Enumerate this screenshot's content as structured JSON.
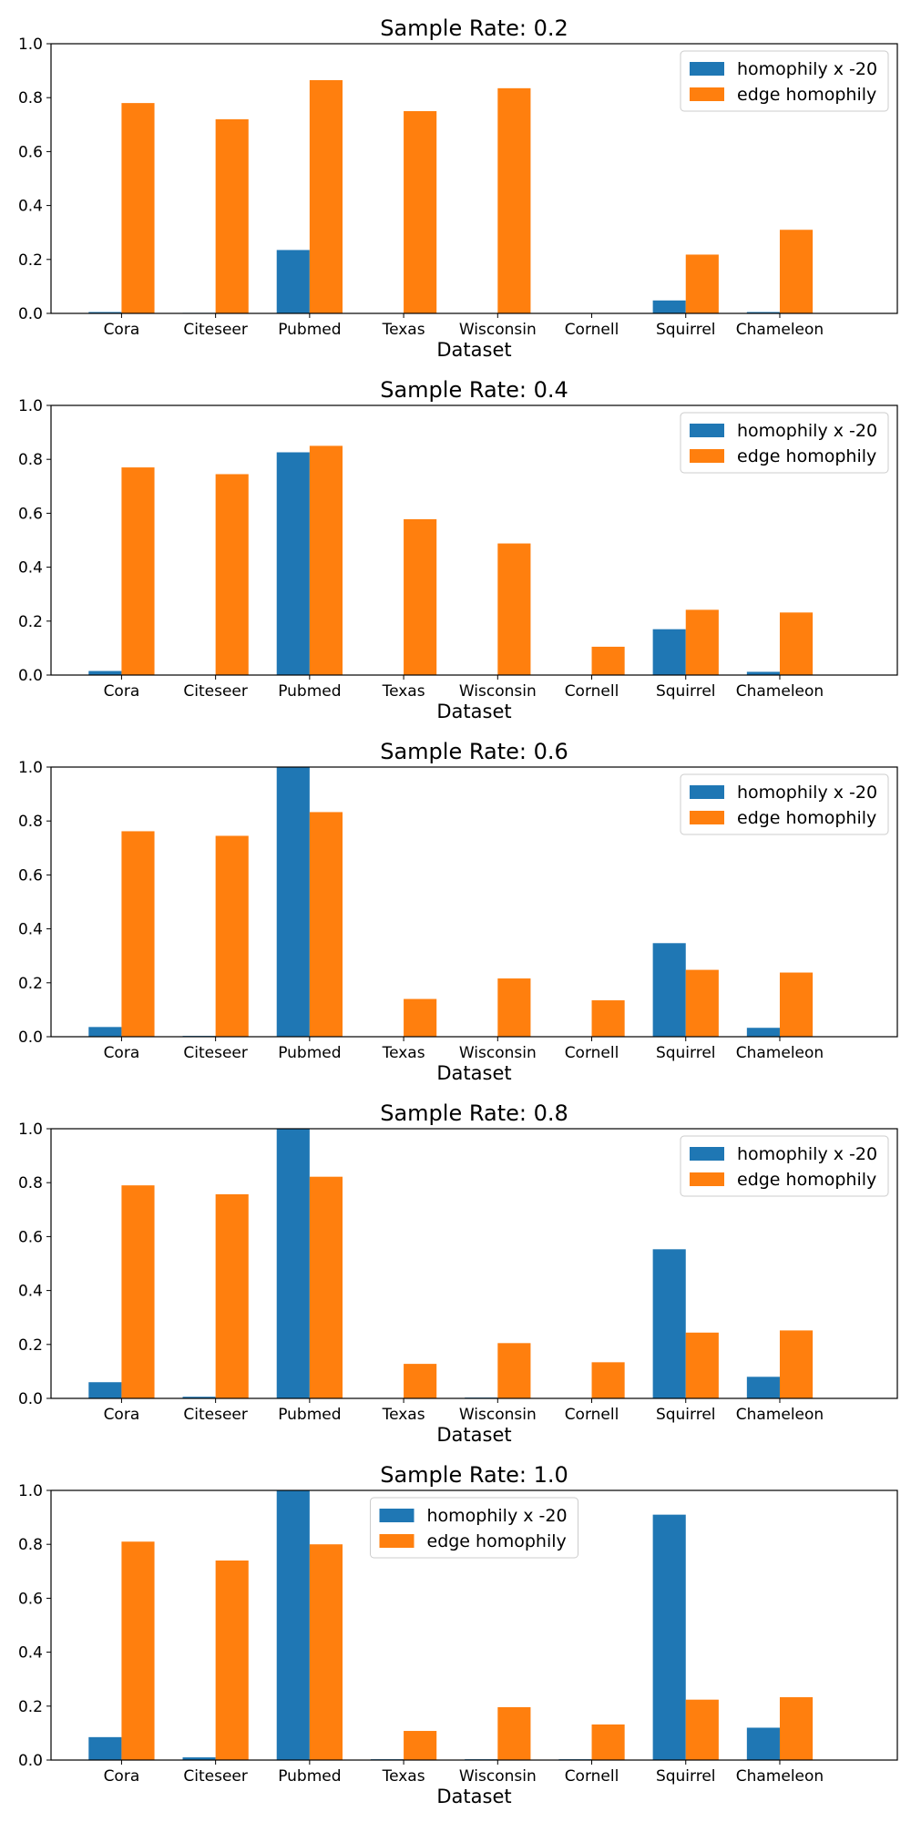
{
  "colors": {
    "series_1": "#1f77b4",
    "series_2": "#ff7f0e"
  },
  "chart_data": [
    {
      "type": "bar",
      "title": "Sample Rate: 0.2",
      "xlabel": "Dataset",
      "ylabel": "",
      "ylim": [
        0,
        1.0
      ],
      "yticks": [
        "0.0",
        "0.2",
        "0.4",
        "0.6",
        "0.8",
        "1.0"
      ],
      "categories": [
        "Cora",
        "Citeseer",
        "Pubmed",
        "Texas",
        "Wisconsin",
        "Cornell",
        "Squirrel",
        "Chameleon"
      ],
      "legend_position": "upper right",
      "series": [
        {
          "name": "homophily x -20",
          "values": [
            0.005,
            0.002,
            0.235,
            0.0,
            0.0,
            0.0,
            0.048,
            0.005
          ]
        },
        {
          "name": "edge homophily",
          "values": [
            0.78,
            0.72,
            0.865,
            0.75,
            0.835,
            0.0,
            0.218,
            0.31
          ]
        }
      ]
    },
    {
      "type": "bar",
      "title": "Sample Rate: 0.4",
      "xlabel": "Dataset",
      "ylabel": "",
      "ylim": [
        0,
        1.0
      ],
      "yticks": [
        "0.0",
        "0.2",
        "0.4",
        "0.6",
        "0.8",
        "1.0"
      ],
      "categories": [
        "Cora",
        "Citeseer",
        "Pubmed",
        "Texas",
        "Wisconsin",
        "Cornell",
        "Squirrel",
        "Chameleon"
      ],
      "legend_position": "upper right",
      "series": [
        {
          "name": "homophily x -20",
          "values": [
            0.015,
            0.0,
            0.826,
            0.0,
            0.0,
            0.0,
            0.17,
            0.012
          ]
        },
        {
          "name": "edge homophily",
          "values": [
            0.77,
            0.745,
            0.85,
            0.578,
            0.488,
            0.105,
            0.242,
            0.232
          ]
        }
      ]
    },
    {
      "type": "bar",
      "title": "Sample Rate: 0.6",
      "xlabel": "Dataset",
      "ylabel": "",
      "ylim": [
        0,
        1.0
      ],
      "yticks": [
        "0.0",
        "0.2",
        "0.4",
        "0.6",
        "0.8",
        "1.0"
      ],
      "categories": [
        "Cora",
        "Citeseer",
        "Pubmed",
        "Texas",
        "Wisconsin",
        "Cornell",
        "Squirrel",
        "Chameleon"
      ],
      "legend_position": "upper right",
      "series": [
        {
          "name": "homophily x -20",
          "values": [
            0.036,
            0.003,
            1.0,
            0.0,
            0.0,
            0.0,
            0.347,
            0.033
          ]
        },
        {
          "name": "edge homophily",
          "values": [
            0.762,
            0.745,
            0.833,
            0.14,
            0.216,
            0.135,
            0.248,
            0.238
          ]
        }
      ]
    },
    {
      "type": "bar",
      "title": "Sample Rate: 0.8",
      "xlabel": "Dataset",
      "ylabel": "",
      "ylim": [
        0,
        1.0
      ],
      "yticks": [
        "0.0",
        "0.2",
        "0.4",
        "0.6",
        "0.8",
        "1.0"
      ],
      "categories": [
        "Cora",
        "Citeseer",
        "Pubmed",
        "Texas",
        "Wisconsin",
        "Cornell",
        "Squirrel",
        "Chameleon"
      ],
      "legend_position": "upper right",
      "series": [
        {
          "name": "homophily x -20",
          "values": [
            0.06,
            0.006,
            1.0,
            0.0,
            0.003,
            0.0,
            0.553,
            0.08
          ]
        },
        {
          "name": "edge homophily",
          "values": [
            0.79,
            0.757,
            0.822,
            0.128,
            0.205,
            0.134,
            0.244,
            0.252
          ]
        }
      ]
    },
    {
      "type": "bar",
      "title": "Sample Rate: 1.0",
      "xlabel": "Dataset",
      "ylabel": "",
      "ylim": [
        0,
        1.0
      ],
      "yticks": [
        "0.0",
        "0.2",
        "0.4",
        "0.6",
        "0.8",
        "1.0"
      ],
      "categories": [
        "Cora",
        "Citeseer",
        "Pubmed",
        "Texas",
        "Wisconsin",
        "Cornell",
        "Squirrel",
        "Chameleon"
      ],
      "legend_position": "upper center",
      "series": [
        {
          "name": "homophily x -20",
          "values": [
            0.085,
            0.01,
            1.0,
            0.003,
            0.003,
            0.003,
            0.91,
            0.12
          ]
        },
        {
          "name": "edge homophily",
          "values": [
            0.81,
            0.74,
            0.8,
            0.108,
            0.196,
            0.132,
            0.224,
            0.233
          ]
        }
      ]
    }
  ]
}
